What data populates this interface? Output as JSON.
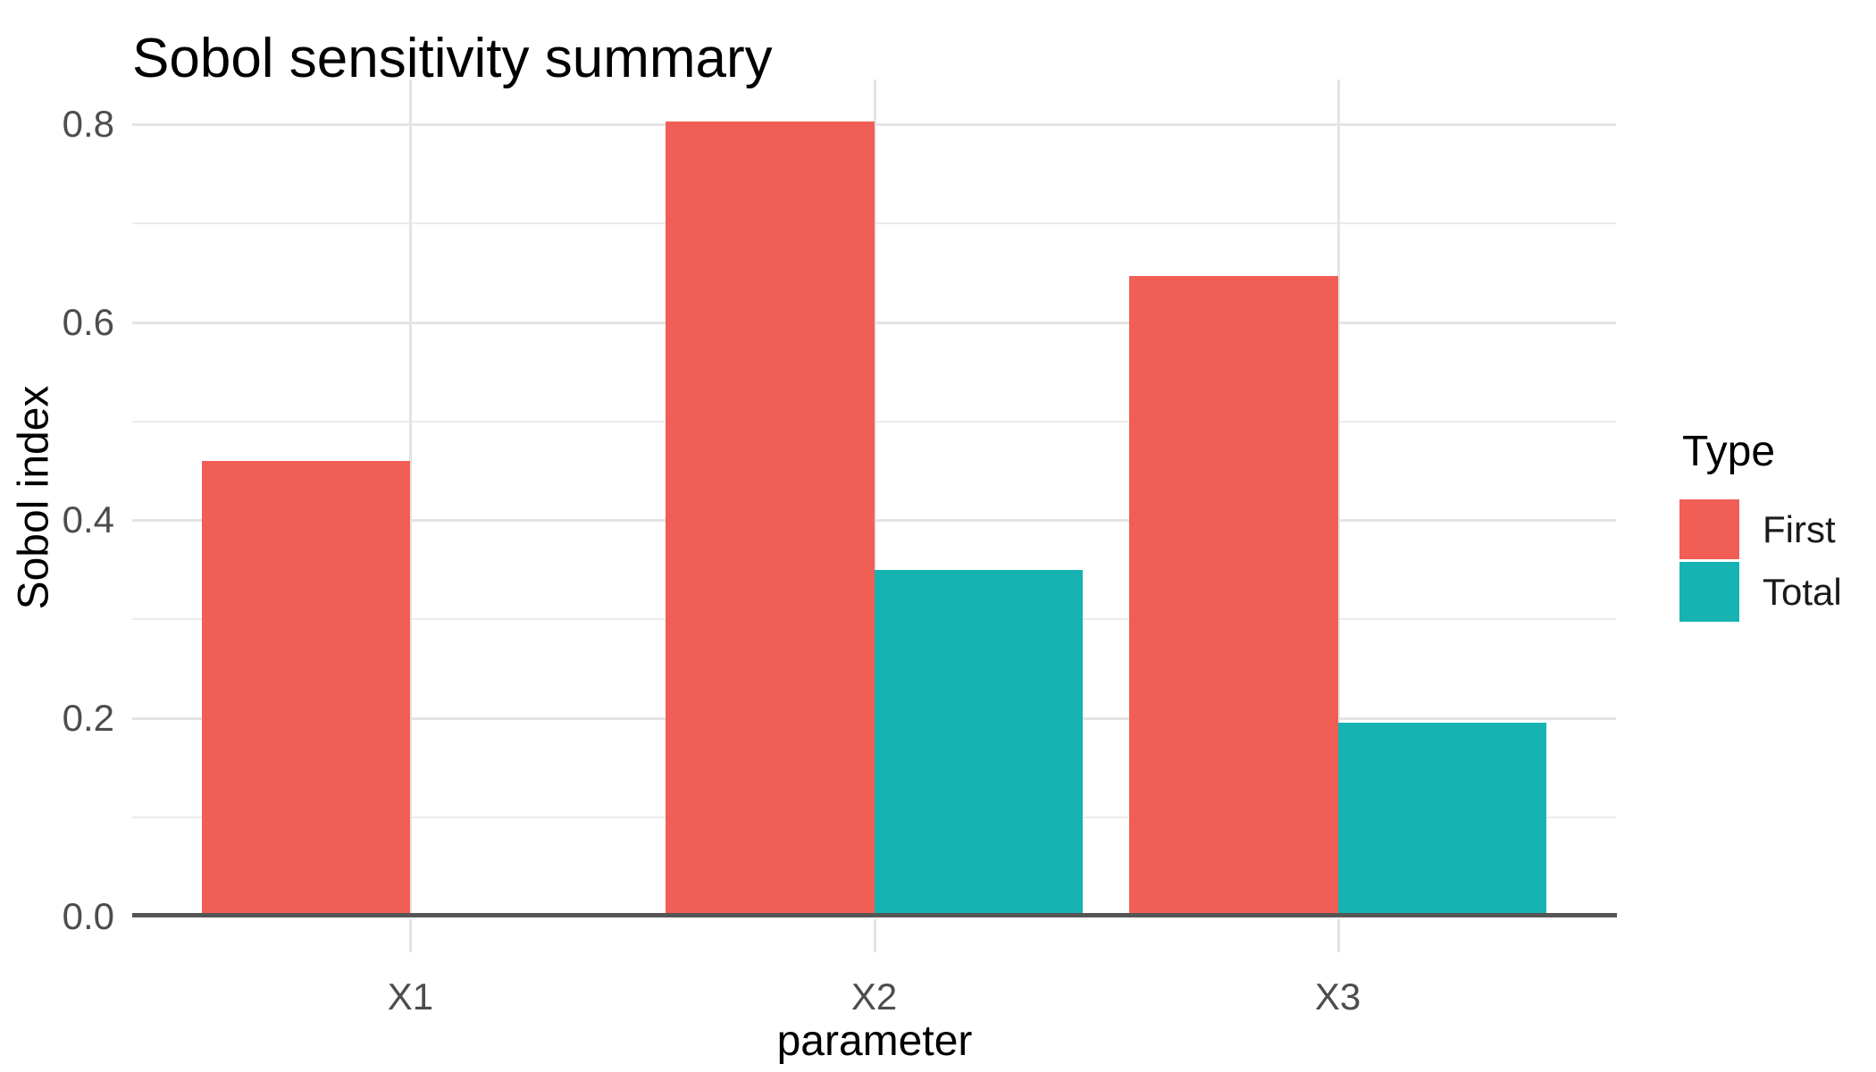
{
  "title": "Sobol sensitivity summary",
  "chart_data": {
    "type": "bar",
    "subtype": "grouped-dodged",
    "title": "Sobol sensitivity summary",
    "xlabel": "parameter",
    "ylabel": "Sobol index",
    "categories": [
      "X1",
      "X2",
      "X3"
    ],
    "series": [
      {
        "name": "First",
        "color": "#f15e56",
        "values": [
          0.46,
          0.803,
          0.647
        ]
      },
      {
        "name": "Total",
        "color": "#17b3b3",
        "values": [
          null,
          0.35,
          0.196
        ]
      }
    ],
    "ylim": [
      0,
      0.845
    ],
    "y_major_ticks": [
      0,
      0.2,
      0.4,
      0.6,
      0.8
    ],
    "y_tick_labels": [
      "0.0",
      "0.2",
      "0.4",
      "0.6",
      "0.8"
    ],
    "y_minor_ticks": [
      0.1,
      0.3,
      0.5,
      0.7
    ],
    "grid": "major-and-minor-horizontal, major-vertical-at-categories",
    "legend_position": "right"
  },
  "legend": {
    "title": "Type",
    "entries": [
      {
        "label": "First",
        "color": "#f15e56"
      },
      {
        "label": "Total",
        "color": "#17b3b3"
      }
    ]
  },
  "colors": {
    "background": "#ffffff",
    "axis_line": "#555555",
    "gridline_major": "#e4e4e4",
    "gridline_minor": "#ececec",
    "tick_text": "#4d4d4d"
  }
}
